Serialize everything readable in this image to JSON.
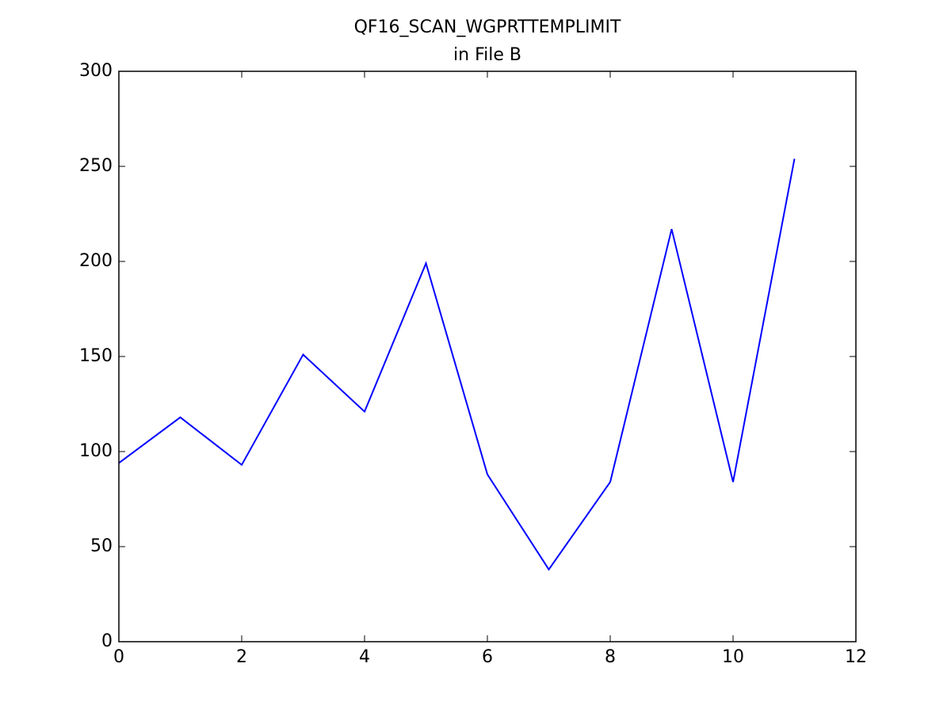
{
  "chart_data": {
    "type": "line",
    "title": [
      "QF16_SCAN_WGPRTTEMPLIMIT",
      "in File B"
    ],
    "x": [
      0,
      1,
      2,
      3,
      4,
      5,
      6,
      7,
      8,
      9,
      10,
      11
    ],
    "series": [
      {
        "color": "#0000ff",
        "values": [
          94,
          118,
          93,
          151,
          121,
          199,
          88,
          38,
          84,
          217,
          84,
          254
        ]
      }
    ],
    "xlim": [
      0,
      12
    ],
    "xticks": [
      0,
      2,
      4,
      6,
      8,
      10,
      12
    ],
    "ylim": [
      0,
      300
    ],
    "yticks": [
      0,
      50,
      100,
      150,
      200,
      250,
      300
    ],
    "grid": false
  }
}
